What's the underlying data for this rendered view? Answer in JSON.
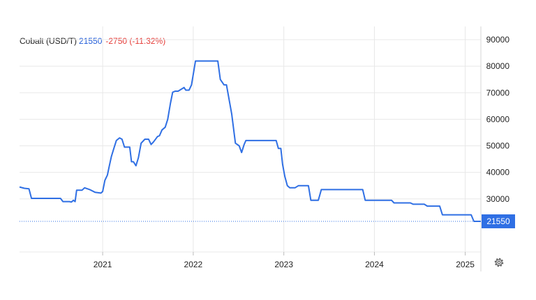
{
  "legend": {
    "symbol": "Cobalt (USD/T)",
    "price": "21550",
    "change": "-2750 (-11.32%)"
  },
  "settings_icon": "gear-icon",
  "colors": {
    "line": "#2f6fe4",
    "last_label_bg": "#2f6fe4",
    "change_negative": "#e53935",
    "grid": "#e8e8e8"
  },
  "chart_data": {
    "type": "line",
    "title": "",
    "xlabel": "",
    "ylabel": "",
    "grid": true,
    "legend_position": "top-left",
    "x_ticks": [
      "2021",
      "2022",
      "2023",
      "2024",
      "2025"
    ],
    "y_ticks": [
      30000,
      40000,
      50000,
      60000,
      70000,
      80000,
      90000
    ],
    "ylim": [
      10000,
      95000
    ],
    "xlim": [
      "2020-02-01",
      "2025-03-05"
    ],
    "last_value_label": "21550",
    "series": [
      {
        "x": [
          "2020-02-01",
          "2020-02-20",
          "2020-03-10",
          "2020-03-20",
          "2020-07-15",
          "2020-07-25",
          "2020-08-20",
          "2020-08-28",
          "2020-09-05",
          "2020-09-12",
          "2020-09-18",
          "2020-10-10",
          "2020-10-20",
          "2020-11-10",
          "2020-12-01",
          "2020-12-25",
          "2021-01-01",
          "2021-01-10",
          "2021-01-20",
          "2021-01-28",
          "2021-02-05",
          "2021-02-15",
          "2021-02-25",
          "2021-03-10",
          "2021-03-20",
          "2021-03-30",
          "2021-04-20",
          "2021-04-27",
          "2021-05-05",
          "2021-05-15",
          "2021-05-25",
          "2021-06-05",
          "2021-06-20",
          "2021-07-05",
          "2021-07-15",
          "2021-07-25",
          "2021-08-10",
          "2021-08-18",
          "2021-08-28",
          "2021-09-10",
          "2021-09-20",
          "2021-10-01",
          "2021-10-10",
          "2021-10-20",
          "2021-11-01",
          "2021-11-25",
          "2021-12-02",
          "2021-12-15",
          "2021-12-25",
          "2022-01-10",
          "2022-01-25",
          "2022-02-05",
          "2022-04-10",
          "2022-04-20",
          "2022-05-05",
          "2022-05-15",
          "2022-06-05",
          "2022-06-20",
          "2022-07-05",
          "2022-07-15",
          "2022-07-25",
          "2022-08-01",
          "2022-08-10",
          "2022-08-20",
          "2022-12-01",
          "2022-12-10",
          "2022-12-20",
          "2022-12-27",
          "2023-01-05",
          "2023-01-15",
          "2023-01-25",
          "2023-02-15",
          "2023-03-01",
          "2023-04-10",
          "2023-04-20",
          "2023-05-20",
          "2023-06-01",
          "2023-11-15",
          "2023-11-25",
          "2024-03-10",
          "2024-03-20",
          "2024-05-25",
          "2024-06-05",
          "2024-07-20",
          "2024-08-01",
          "2024-09-20",
          "2024-10-01",
          "2025-01-15",
          "2025-01-25",
          "2025-02-05",
          "2025-03-05"
        ],
        "y": [
          34500,
          34000,
          33800,
          30200,
          30200,
          29000,
          29000,
          28800,
          29500,
          29000,
          33300,
          33300,
          34200,
          33500,
          32500,
          32200,
          32800,
          37000,
          39000,
          42500,
          46000,
          49000,
          52000,
          53000,
          52500,
          49500,
          49500,
          44000,
          44000,
          42500,
          45500,
          51000,
          52500,
          52500,
          50500,
          51500,
          53500,
          53800,
          56000,
          57000,
          60000,
          66000,
          70200,
          70600,
          70600,
          72000,
          71000,
          71000,
          73000,
          82000,
          82000,
          82000,
          82000,
          75000,
          73000,
          73000,
          62000,
          51000,
          50000,
          47500,
          50500,
          52000,
          52000,
          52000,
          52000,
          49000,
          49000,
          43000,
          38500,
          35000,
          34200,
          34200,
          35000,
          35000,
          29500,
          29500,
          33500,
          33500,
          29500,
          29500,
          28500,
          28500,
          28000,
          28000,
          27300,
          27300,
          24000,
          24000,
          24000,
          21550,
          21550
        ]
      }
    ]
  }
}
